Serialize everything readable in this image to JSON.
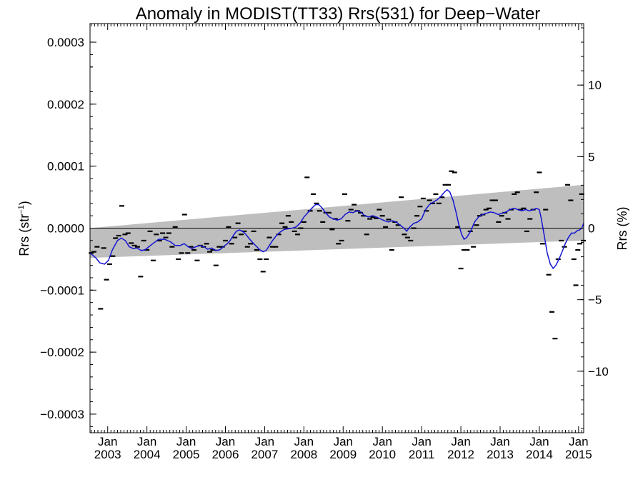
{
  "chart_data": {
    "type": "scatter",
    "title": "Anomaly in MODIST(TT33) Rrs(531) for Deep−Water",
    "ylabel_left": {
      "base": "Rrs (str",
      "sup": "−1",
      "close": ")"
    },
    "ylabel_right": "Rrs (%)",
    "xlim": [
      2002.55,
      2015.13
    ],
    "ylim_left": [
      -0.00033,
      0.00033
    ],
    "ylim_right": [
      -14.3,
      14.3
    ],
    "left_ticks": [
      {
        "value": 0.0003,
        "label": "0.0003"
      },
      {
        "value": 0.0002,
        "label": "0.0002"
      },
      {
        "value": 0.0001,
        "label": "0.0001"
      },
      {
        "value": 0.0,
        "label": "0.0000"
      },
      {
        "value": -0.0001,
        "label": "−0.0001"
      },
      {
        "value": -0.0002,
        "label": "−0.0002"
      },
      {
        "value": -0.0003,
        "label": "−0.0003"
      }
    ],
    "right_ticks": [
      {
        "value": 10,
        "label": "10"
      },
      {
        "value": 5,
        "label": "5"
      },
      {
        "value": 0,
        "label": "0"
      },
      {
        "value": -5,
        "label": "−5"
      },
      {
        "value": -10,
        "label": "−10"
      }
    ],
    "x_ticks": [
      {
        "value": 2003,
        "label1": "Jan",
        "label2": "2003"
      },
      {
        "value": 2004,
        "label1": "Jan",
        "label2": "2004"
      },
      {
        "value": 2005,
        "label1": "Jan",
        "label2": "2005"
      },
      {
        "value": 2006,
        "label1": "Jan",
        "label2": "2006"
      },
      {
        "value": 2007,
        "label1": "Jan",
        "label2": "2007"
      },
      {
        "value": 2008,
        "label1": "Jan",
        "label2": "2008"
      },
      {
        "value": 2009,
        "label1": "Jan",
        "label2": "2009"
      },
      {
        "value": 2010,
        "label1": "Jan",
        "label2": "2010"
      },
      {
        "value": 2011,
        "label1": "Jan",
        "label2": "2011"
      },
      {
        "value": 2012,
        "label1": "Jan",
        "label2": "2012"
      },
      {
        "value": 2013,
        "label1": "Jan",
        "label2": "2013"
      },
      {
        "value": 2014,
        "label1": "Jan",
        "label2": "2014"
      },
      {
        "value": 2015,
        "label1": "Jan",
        "label2": "2015"
      }
    ],
    "band": {
      "upper": [
        [
          2002.55,
          0.0
        ],
        [
          2015.13,
          7e-05
        ]
      ],
      "lower": [
        [
          2002.55,
          -4.8e-05
        ],
        [
          2015.13,
          -2e-05
        ]
      ]
    },
    "zero_line": 0.0,
    "points": [
      [
        2002.58,
        -4e-05
      ],
      [
        2002.65,
        -3.8e-05
      ],
      [
        2002.73,
        -3e-05
      ],
      [
        2002.82,
        -0.00013
      ],
      [
        2002.9,
        -3.2e-05
      ],
      [
        2002.97,
        -8.3e-05
      ],
      [
        2003.05,
        -5.8e-05
      ],
      [
        2003.13,
        -4.5e-05
      ],
      [
        2003.2,
        -1.6e-05
      ],
      [
        2003.28,
        -1.2e-05
      ],
      [
        2003.36,
        3.6e-05
      ],
      [
        2003.44,
        -1e-05
      ],
      [
        2003.52,
        -8e-06
      ],
      [
        2003.6,
        -2.4e-05
      ],
      [
        2003.68,
        -2.8e-05
      ],
      [
        2003.76,
        -3e-05
      ],
      [
        2003.84,
        -7.8e-05
      ],
      [
        2003.92,
        -2e-05
      ],
      [
        2004.0,
        -3.5e-05
      ],
      [
        2004.08,
        -5e-06
      ],
      [
        2004.16,
        -5.2e-05
      ],
      [
        2004.24,
        -1e-05
      ],
      [
        2004.32,
        -2e-05
      ],
      [
        2004.4,
        -8e-06
      ],
      [
        2004.48,
        -1.5e-05
      ],
      [
        2004.56,
        -8e-06
      ],
      [
        2004.64,
        -3e-05
      ],
      [
        2004.72,
        2e-06
      ],
      [
        2004.8,
        -5e-05
      ],
      [
        2004.88,
        -4e-05
      ],
      [
        2004.96,
        2.2e-05
      ],
      [
        2005.04,
        -4e-05
      ],
      [
        2005.12,
        -3e-05
      ],
      [
        2005.2,
        -3.5e-05
      ],
      [
        2005.28,
        -5.2e-05
      ],
      [
        2005.36,
        -2.8e-05
      ],
      [
        2005.44,
        -3e-05
      ],
      [
        2005.52,
        -2.5e-05
      ],
      [
        2005.6,
        -3.8e-05
      ],
      [
        2005.68,
        -3.5e-05
      ],
      [
        2005.76,
        -6e-05
      ],
      [
        2005.84,
        -3e-05
      ],
      [
        2005.92,
        -3e-05
      ],
      [
        2006.0,
        -2e-05
      ],
      [
        2006.08,
        2e-06
      ],
      [
        2006.16,
        -2.5e-05
      ],
      [
        2006.24,
        -1.5e-05
      ],
      [
        2006.32,
        8e-06
      ],
      [
        2006.4,
        -1e-05
      ],
      [
        2006.48,
        -5e-06
      ],
      [
        2006.56,
        -3e-05
      ],
      [
        2006.64,
        -2.5e-05
      ],
      [
        2006.72,
        -5e-06
      ],
      [
        2006.8,
        -3.5e-05
      ],
      [
        2006.88,
        -5e-05
      ],
      [
        2006.96,
        -7e-05
      ],
      [
        2007.04,
        -5e-05
      ],
      [
        2007.12,
        -1.5e-05
      ],
      [
        2007.2,
        -3e-05
      ],
      [
        2007.28,
        -3e-05
      ],
      [
        2007.36,
        -1e-05
      ],
      [
        2007.44,
        8e-06
      ],
      [
        2007.52,
        2e-06
      ],
      [
        2007.6,
        2e-05
      ],
      [
        2007.68,
        1e-05
      ],
      [
        2007.76,
        -5e-06
      ],
      [
        2007.84,
        -1e-05
      ],
      [
        2007.92,
        0.0
      ],
      [
        2008.0,
        1e-05
      ],
      [
        2008.08,
        8.2e-05
      ],
      [
        2008.16,
        2.8e-05
      ],
      [
        2008.24,
        5.5e-05
      ],
      [
        2008.32,
        4e-05
      ],
      [
        2008.4,
        2.8e-05
      ],
      [
        2008.48,
        1e-05
      ],
      [
        2008.56,
        2.5e-05
      ],
      [
        2008.64,
        2.5e-05
      ],
      [
        2008.72,
        -2e-06
      ],
      [
        2008.8,
        1.5e-05
      ],
      [
        2008.88,
        -2.5e-05
      ],
      [
        2008.96,
        -2e-05
      ],
      [
        2009.04,
        5.5e-05
      ],
      [
        2009.12,
        1.2e-05
      ],
      [
        2009.2,
        3e-05
      ],
      [
        2009.28,
        3.8e-05
      ],
      [
        2009.36,
        2.8e-05
      ],
      [
        2009.44,
        2.5e-05
      ],
      [
        2009.52,
        2e-05
      ],
      [
        2009.6,
        -1e-05
      ],
      [
        2009.68,
        1.5e-05
      ],
      [
        2009.76,
        1.8e-05
      ],
      [
        2009.84,
        1.6e-05
      ],
      [
        2009.92,
        3e-05
      ],
      [
        2010.0,
        2e-05
      ],
      [
        2010.08,
        2e-06
      ],
      [
        2010.16,
        1.4e-05
      ],
      [
        2010.24,
        -3.5e-05
      ],
      [
        2010.32,
        1e-05
      ],
      [
        2010.4,
        5e-06
      ],
      [
        2010.48,
        5e-05
      ],
      [
        2010.56,
        -1e-05
      ],
      [
        2010.64,
        -1.5e-05
      ],
      [
        2010.72,
        -2e-05
      ],
      [
        2010.8,
        0.0
      ],
      [
        2010.88,
        2e-05
      ],
      [
        2010.96,
        3.5e-05
      ],
      [
        2011.04,
        4.8e-05
      ],
      [
        2011.12,
        2.8e-05
      ],
      [
        2011.2,
        4.5e-05
      ],
      [
        2011.28,
        4e-05
      ],
      [
        2011.36,
        5.5e-05
      ],
      [
        2011.44,
        4e-05
      ],
      [
        2011.52,
        5e-05
      ],
      [
        2011.6,
        7e-05
      ],
      [
        2011.68,
        7e-05
      ],
      [
        2011.76,
        9.2e-05
      ],
      [
        2011.84,
        9e-05
      ],
      [
        2011.92,
        2e-06
      ],
      [
        2012.0,
        -6.5e-05
      ],
      [
        2012.08,
        -3.5e-05
      ],
      [
        2012.16,
        -3.5e-05
      ],
      [
        2012.24,
        -5e-06
      ],
      [
        2012.32,
        -3e-05
      ],
      [
        2012.4,
        5e-06
      ],
      [
        2012.48,
        2e-05
      ],
      [
        2012.56,
        2.2e-05
      ],
      [
        2012.64,
        3e-05
      ],
      [
        2012.72,
        3.2e-05
      ],
      [
        2012.8,
        4.5e-05
      ],
      [
        2012.88,
        4.5e-05
      ],
      [
        2012.96,
        1e-05
      ],
      [
        2013.04,
        2e-05
      ],
      [
        2013.12,
        2.5e-05
      ],
      [
        2013.2,
        1.5e-05
      ],
      [
        2013.28,
        3e-05
      ],
      [
        2013.36,
        5.5e-05
      ],
      [
        2013.44,
        5.8e-05
      ],
      [
        2013.52,
        3e-05
      ],
      [
        2013.6,
        3.2e-05
      ],
      [
        2013.68,
        -5e-06
      ],
      [
        2013.76,
        1.5e-05
      ],
      [
        2013.84,
        3e-05
      ],
      [
        2013.92,
        5.8e-05
      ],
      [
        2014.0,
        9e-05
      ],
      [
        2014.08,
        -2.5e-05
      ],
      [
        2014.16,
        3e-05
      ],
      [
        2014.24,
        -7.5e-05
      ],
      [
        2014.32,
        -0.000135
      ],
      [
        2014.4,
        -0.000178
      ],
      [
        2014.48,
        -5e-05
      ],
      [
        2014.56,
        -2e-05
      ],
      [
        2014.64,
        -3e-05
      ],
      [
        2014.72,
        7e-05
      ],
      [
        2014.8,
        4.5e-05
      ],
      [
        2014.88,
        -5e-05
      ],
      [
        2014.93,
        -9.2e-05
      ],
      [
        2014.98,
        -3.5e-05
      ],
      [
        2015.03,
        -2.5e-05
      ],
      [
        2015.08,
        5.5e-05
      ],
      [
        2015.12,
        -2e-05
      ]
    ],
    "smooth_line": [
      [
        2002.55,
        -4e-05
      ],
      [
        2002.7,
        -4.8e-05
      ],
      [
        2002.8,
        -5.6e-05
      ],
      [
        2002.92,
        -5.8e-05
      ],
      [
        2003.02,
        -5.2e-05
      ],
      [
        2003.12,
        -3.5e-05
      ],
      [
        2003.25,
        -2e-05
      ],
      [
        2003.35,
        -1.6e-05
      ],
      [
        2003.45,
        -2e-05
      ],
      [
        2003.55,
        -3e-05
      ],
      [
        2003.65,
        -3.3e-05
      ],
      [
        2003.75,
        -3.2e-05
      ],
      [
        2003.85,
        -3.6e-05
      ],
      [
        2003.95,
        -3.5e-05
      ],
      [
        2004.05,
        -3e-05
      ],
      [
        2004.15,
        -2.5e-05
      ],
      [
        2004.3,
        -1.8e-05
      ],
      [
        2004.45,
        -1.8e-05
      ],
      [
        2004.6,
        -2.2e-05
      ],
      [
        2004.72,
        -2.8e-05
      ],
      [
        2004.85,
        -2.8e-05
      ],
      [
        2004.95,
        -2.5e-05
      ],
      [
        2005.05,
        -3e-05
      ],
      [
        2005.15,
        -3.3e-05
      ],
      [
        2005.25,
        -3e-05
      ],
      [
        2005.35,
        -2.8e-05
      ],
      [
        2005.45,
        -3e-05
      ],
      [
        2005.55,
        -3.4e-05
      ],
      [
        2005.65,
        -3.2e-05
      ],
      [
        2005.75,
        -3.6e-05
      ],
      [
        2005.85,
        -3.5e-05
      ],
      [
        2005.95,
        -3e-05
      ],
      [
        2006.05,
        -2.5e-05
      ],
      [
        2006.12,
        -2e-05
      ],
      [
        2006.2,
        -1.2e-05
      ],
      [
        2006.28,
        -5e-06
      ],
      [
        2006.36,
        -3e-06
      ],
      [
        2006.44,
        -5e-06
      ],
      [
        2006.52,
        -1e-05
      ],
      [
        2006.62,
        -1.8e-05
      ],
      [
        2006.72,
        -2.5e-05
      ],
      [
        2006.8,
        -3e-05
      ],
      [
        2006.88,
        -3.5e-05
      ],
      [
        2006.96,
        -3.8e-05
      ],
      [
        2007.04,
        -3.6e-05
      ],
      [
        2007.12,
        -2.8e-05
      ],
      [
        2007.2,
        -2e-05
      ],
      [
        2007.3,
        -1.2e-05
      ],
      [
        2007.4,
        -6e-06
      ],
      [
        2007.5,
        -2e-06
      ],
      [
        2007.6,
        -1e-06
      ],
      [
        2007.7,
        0.0
      ],
      [
        2007.8,
        2e-06
      ],
      [
        2007.9,
        8e-06
      ],
      [
        2008.0,
        1.8e-05
      ],
      [
        2008.1,
        2.5e-05
      ],
      [
        2008.2,
        3.2e-05
      ],
      [
        2008.3,
        3.8e-05
      ],
      [
        2008.38,
        3.8e-05
      ],
      [
        2008.46,
        3.3e-05
      ],
      [
        2008.55,
        2.5e-05
      ],
      [
        2008.65,
        1.8e-05
      ],
      [
        2008.75,
        1.5e-05
      ],
      [
        2008.85,
        1.3e-05
      ],
      [
        2008.95,
        1.5e-05
      ],
      [
        2009.05,
        2.2e-05
      ],
      [
        2009.15,
        2.6e-05
      ],
      [
        2009.25,
        2.5e-05
      ],
      [
        2009.35,
        2.8e-05
      ],
      [
        2009.45,
        2.6e-05
      ],
      [
        2009.55,
        2e-05
      ],
      [
        2009.65,
        1.8e-05
      ],
      [
        2009.75,
        2e-05
      ],
      [
        2009.85,
        1.8e-05
      ],
      [
        2009.95,
        1.5e-05
      ],
      [
        2010.05,
        1.2e-05
      ],
      [
        2010.15,
        1e-05
      ],
      [
        2010.25,
        1.2e-05
      ],
      [
        2010.35,
        1e-05
      ],
      [
        2010.45,
        5e-06
      ],
      [
        2010.55,
        0.0
      ],
      [
        2010.62,
        -5e-06
      ],
      [
        2010.7,
        2e-06
      ],
      [
        2010.8,
        8e-06
      ],
      [
        2010.9,
        1e-05
      ],
      [
        2011.0,
        1.5e-05
      ],
      [
        2011.1,
        3e-05
      ],
      [
        2011.2,
        3.8e-05
      ],
      [
        2011.3,
        4.2e-05
      ],
      [
        2011.4,
        4.6e-05
      ],
      [
        2011.5,
        5.2e-05
      ],
      [
        2011.58,
        5.8e-05
      ],
      [
        2011.65,
        6.2e-05
      ],
      [
        2011.72,
        5.8e-05
      ],
      [
        2011.8,
        4.5e-05
      ],
      [
        2011.88,
        2.5e-05
      ],
      [
        2011.95,
        5e-06
      ],
      [
        2012.02,
        -1e-05
      ],
      [
        2012.08,
        -1.8e-05
      ],
      [
        2012.15,
        -1.5e-05
      ],
      [
        2012.25,
        -5e-06
      ],
      [
        2012.35,
        1e-05
      ],
      [
        2012.45,
        1.8e-05
      ],
      [
        2012.55,
        2.2e-05
      ],
      [
        2012.65,
        2.4e-05
      ],
      [
        2012.75,
        2.6e-05
      ],
      [
        2012.85,
        2.5e-05
      ],
      [
        2012.95,
        2.2e-05
      ],
      [
        2013.05,
        2.4e-05
      ],
      [
        2013.15,
        2.6e-05
      ],
      [
        2013.25,
        3e-05
      ],
      [
        2013.35,
        3.2e-05
      ],
      [
        2013.45,
        3e-05
      ],
      [
        2013.55,
        2.8e-05
      ],
      [
        2013.65,
        3e-05
      ],
      [
        2013.75,
        2.8e-05
      ],
      [
        2013.85,
        3e-05
      ],
      [
        2013.92,
        3.2e-05
      ],
      [
        2014.0,
        3e-05
      ],
      [
        2014.05,
        1.5e-05
      ],
      [
        2014.12,
        -1e-05
      ],
      [
        2014.2,
        -4e-05
      ],
      [
        2014.28,
        -5.8e-05
      ],
      [
        2014.35,
        -6.5e-05
      ],
      [
        2014.42,
        -6e-05
      ],
      [
        2014.5,
        -5e-05
      ],
      [
        2014.58,
        -3.8e-05
      ],
      [
        2014.66,
        -2.5e-05
      ],
      [
        2014.74,
        -1.5e-05
      ],
      [
        2014.82,
        -8e-06
      ],
      [
        2014.9,
        -8e-06
      ],
      [
        2014.96,
        -4e-06
      ],
      [
        2015.02,
        -3e-06
      ],
      [
        2015.08,
        0.0
      ],
      [
        2015.13,
        8e-06
      ]
    ],
    "colors": {
      "band": "#bebebe",
      "line": "#1414d2",
      "points": "#000000",
      "axis": "#000000"
    }
  }
}
